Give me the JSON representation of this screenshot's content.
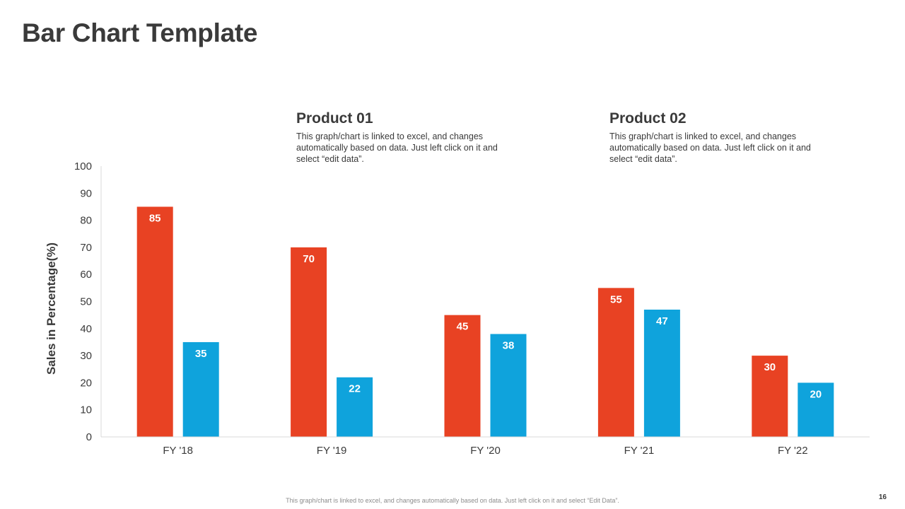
{
  "slide": {
    "title": "Bar Chart Template",
    "footer": "This graph/chart is linked to excel, and changes automatically based on data. Just left click on it and select “Edit Data”.",
    "page_number": "16"
  },
  "legend": {
    "product1": {
      "title": "Product 01",
      "description": "This graph/chart is linked to excel, and changes automatically based on data. Just left click on it and select “edit data”."
    },
    "product2": {
      "title": "Product 02",
      "description": "This graph/chart is linked to excel, and changes automatically based on data. Just left click on it and select “edit data”."
    }
  },
  "colors": {
    "product1": "#E84223",
    "product2": "#0FA3DC",
    "axis": "#d9d9d9",
    "tick_text": "#3a3a3a"
  },
  "chart_data": {
    "type": "bar",
    "title": "",
    "xlabel": "",
    "ylabel": "Sales in Percentage(%)",
    "categories": [
      "FY '18",
      "FY '19",
      "FY '20",
      "FY '21",
      "FY '22"
    ],
    "series": [
      {
        "name": "Product 01",
        "values": [
          85,
          70,
          45,
          55,
          30
        ]
      },
      {
        "name": "Product 02",
        "values": [
          35,
          22,
          38,
          47,
          20
        ]
      }
    ],
    "ylim": [
      0,
      100
    ],
    "yticks": [
      0,
      10,
      20,
      30,
      40,
      50,
      60,
      70,
      80,
      90,
      100
    ],
    "grid": false,
    "data_labels": true
  }
}
